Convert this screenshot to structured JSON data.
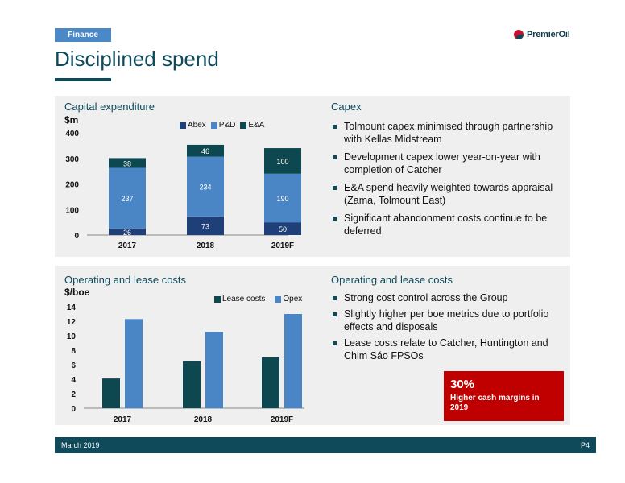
{
  "header": {
    "tag": "Finance",
    "title": "Disciplined spend",
    "logo_text": "PremierOil"
  },
  "capex_panel": {
    "chart_title": "Capital expenditure",
    "unit": "$m",
    "legend": [
      "Abex",
      "P&D",
      "E&A"
    ],
    "bullet_title": "Capex",
    "bullets": [
      "Tolmount capex minimised through partnership with Kellas Midstream",
      "Development capex lower year-on-year with completion of Catcher",
      "E&A spend heavily weighted towards appraisal (Zama, Tolmount East)",
      "Significant abandonment costs continue to be deferred"
    ]
  },
  "opex_panel": {
    "chart_title": "Operating and lease costs",
    "unit": "$/boe",
    "legend": [
      "Lease costs",
      "Opex"
    ],
    "bullet_title": "Operating and lease costs",
    "bullets": [
      "Strong cost control across the Group",
      "Slightly higher per boe metrics due to portfolio effects and disposals",
      "Lease costs relate to Catcher, Huntington and Chim Sáo FPSOs"
    ]
  },
  "callout": {
    "value": "30%",
    "text": "Higher cash margins in 2019"
  },
  "footer": {
    "date": "March 2019",
    "page": "P4"
  },
  "colors": {
    "navy": "#0e4a5a",
    "abex": "#1f3f78",
    "pd": "#4a86c6",
    "ea": "#0d4750",
    "lease": "#0d4750",
    "opex": "#4a86c6",
    "callout": "#c00000"
  },
  "chart_data": [
    {
      "type": "bar",
      "stacked": true,
      "title": "Capital expenditure",
      "ylabel": "$m",
      "categories": [
        "2017",
        "2018",
        "2019F"
      ],
      "series": [
        {
          "name": "Abex",
          "values": [
            26,
            73,
            50
          ]
        },
        {
          "name": "P&D",
          "values": [
            237,
            234,
            190
          ]
        },
        {
          "name": "E&A",
          "values": [
            38,
            46,
            100
          ]
        }
      ],
      "yticks": [
        0,
        100,
        200,
        300,
        400
      ],
      "ylim": [
        0,
        400
      ],
      "legend": "top"
    },
    {
      "type": "bar",
      "stacked": false,
      "title": "Operating and lease costs",
      "ylabel": "$/boe",
      "categories": [
        "2017",
        "2018",
        "2019F"
      ],
      "series": [
        {
          "name": "Lease costs",
          "values": [
            4.1,
            6.5,
            7.0
          ]
        },
        {
          "name": "Opex",
          "values": [
            12.3,
            10.5,
            13.0
          ]
        }
      ],
      "yticks": [
        0,
        2,
        4,
        6,
        8,
        10,
        12,
        14
      ],
      "ylim": [
        0,
        14
      ],
      "legend": "top"
    }
  ]
}
